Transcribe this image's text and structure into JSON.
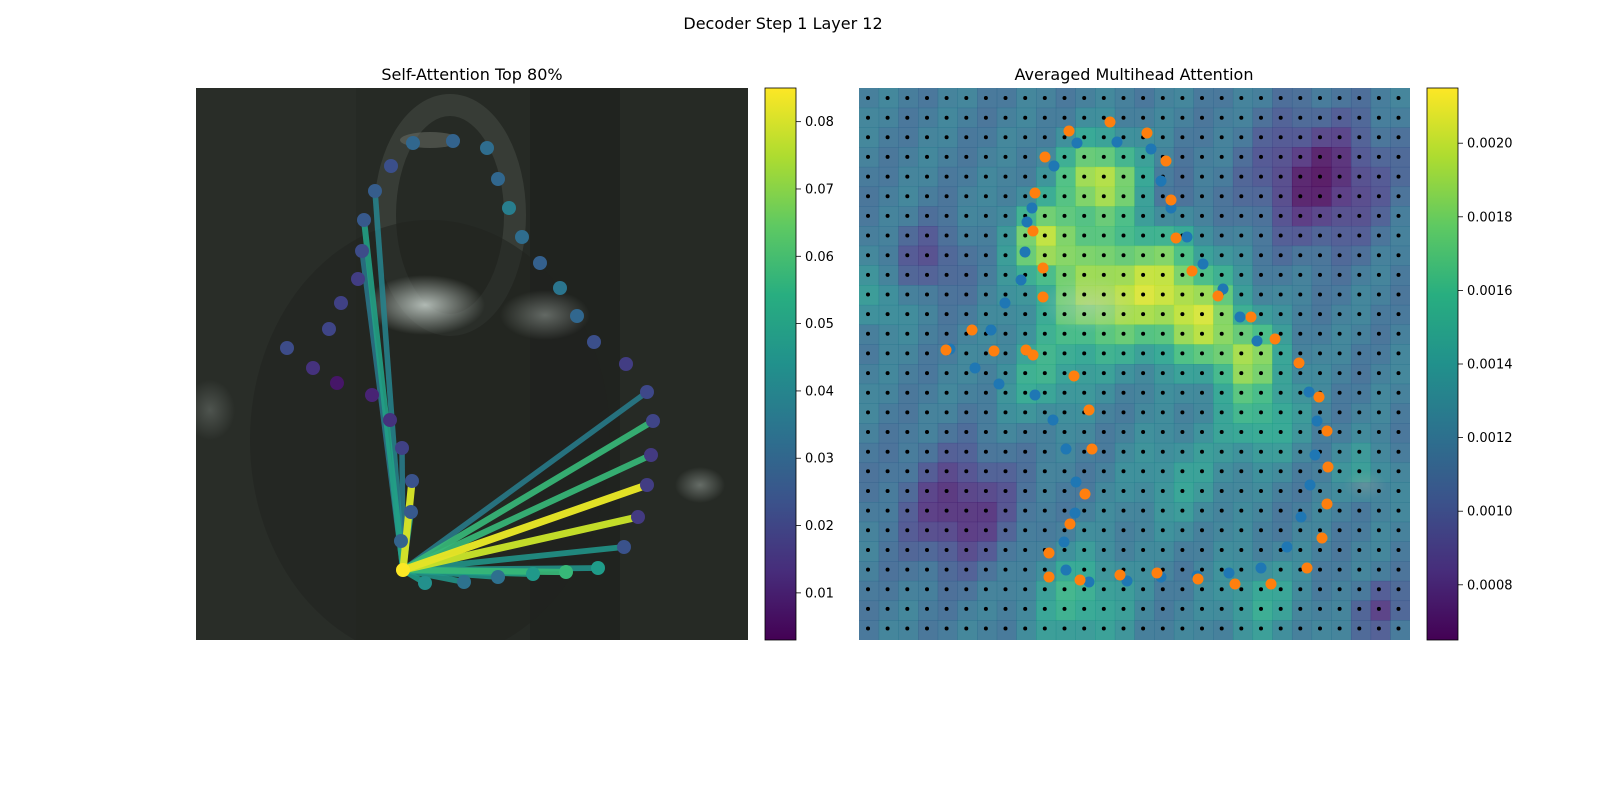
{
  "figure": {
    "title": "Decoder Step 1 Layer 12"
  },
  "chart_data": [
    {
      "type": "scatter",
      "title": "Self-Attention Top 80%",
      "description_of_background": "blurred dark photograph",
      "points": [
        {
          "x": 287,
          "y": 348,
          "w": 0.022
        },
        {
          "x": 313,
          "y": 368,
          "w": 0.015
        },
        {
          "x": 337,
          "y": 383,
          "w": 0.008
        },
        {
          "x": 372,
          "y": 395,
          "w": 0.011
        },
        {
          "x": 329,
          "y": 329,
          "w": 0.02
        },
        {
          "x": 341,
          "y": 303,
          "w": 0.019
        },
        {
          "x": 358,
          "y": 279,
          "w": 0.018
        },
        {
          "x": 362,
          "y": 251,
          "w": 0.022
        },
        {
          "x": 364,
          "y": 220,
          "w": 0.026
        },
        {
          "x": 375,
          "y": 191,
          "w": 0.027
        },
        {
          "x": 391,
          "y": 166,
          "w": 0.023
        },
        {
          "x": 413,
          "y": 143,
          "w": 0.03
        },
        {
          "x": 453,
          "y": 141,
          "w": 0.029
        },
        {
          "x": 487,
          "y": 148,
          "w": 0.032
        },
        {
          "x": 498,
          "y": 179,
          "w": 0.03
        },
        {
          "x": 509,
          "y": 208,
          "w": 0.038
        },
        {
          "x": 522,
          "y": 237,
          "w": 0.032
        },
        {
          "x": 540,
          "y": 263,
          "w": 0.028
        },
        {
          "x": 560,
          "y": 288,
          "w": 0.035
        },
        {
          "x": 577,
          "y": 316,
          "w": 0.03
        },
        {
          "x": 594,
          "y": 342,
          "w": 0.023
        },
        {
          "x": 626,
          "y": 364,
          "w": 0.018
        },
        {
          "x": 647,
          "y": 392,
          "w": 0.021
        },
        {
          "x": 653,
          "y": 421,
          "w": 0.02
        },
        {
          "x": 651,
          "y": 455,
          "w": 0.017
        },
        {
          "x": 647,
          "y": 485,
          "w": 0.018
        },
        {
          "x": 638,
          "y": 517,
          "w": 0.017
        },
        {
          "x": 624,
          "y": 547,
          "w": 0.024
        },
        {
          "x": 598,
          "y": 568,
          "w": 0.048
        },
        {
          "x": 566,
          "y": 572,
          "w": 0.058
        },
        {
          "x": 533,
          "y": 574,
          "w": 0.047
        },
        {
          "x": 498,
          "y": 577,
          "w": 0.033
        },
        {
          "x": 464,
          "y": 582,
          "w": 0.034
        },
        {
          "x": 425,
          "y": 583,
          "w": 0.044
        },
        {
          "x": 403,
          "y": 570,
          "w": 0.085
        },
        {
          "x": 401,
          "y": 541,
          "w": 0.029
        },
        {
          "x": 411,
          "y": 512,
          "w": 0.026
        },
        {
          "x": 412,
          "y": 481,
          "w": 0.024
        },
        {
          "x": 402,
          "y": 448,
          "w": 0.019
        },
        {
          "x": 390,
          "y": 420,
          "w": 0.015
        }
      ],
      "edges": [
        {
          "from": 34,
          "to": 37,
          "w": 0.08
        },
        {
          "from": 34,
          "to": 36,
          "w": 0.048
        },
        {
          "from": 34,
          "to": 35,
          "w": 0.042
        },
        {
          "from": 34,
          "to": 38,
          "w": 0.038
        },
        {
          "from": 34,
          "to": 9,
          "w": 0.04
        },
        {
          "from": 34,
          "to": 8,
          "w": 0.05
        },
        {
          "from": 34,
          "to": 7,
          "w": 0.036
        },
        {
          "from": 34,
          "to": 22,
          "w": 0.038
        },
        {
          "from": 34,
          "to": 23,
          "w": 0.058
        },
        {
          "from": 34,
          "to": 24,
          "w": 0.058
        },
        {
          "from": 34,
          "to": 25,
          "w": 0.082
        },
        {
          "from": 34,
          "to": 26,
          "w": 0.078
        },
        {
          "from": 34,
          "to": 27,
          "w": 0.046
        },
        {
          "from": 34,
          "to": 28,
          "w": 0.045
        },
        {
          "from": 34,
          "to": 29,
          "w": 0.058
        },
        {
          "from": 34,
          "to": 30,
          "w": 0.05
        },
        {
          "from": 34,
          "to": 31,
          "w": 0.046
        },
        {
          "from": 34,
          "to": 32,
          "w": 0.046
        },
        {
          "from": 34,
          "to": 33,
          "w": 0.048
        }
      ],
      "colorbar": {
        "min": 0.003,
        "max": 0.085,
        "ticks": [
          "0.01",
          "0.02",
          "0.03",
          "0.04",
          "0.05",
          "0.06",
          "0.07",
          "0.08"
        ],
        "colormap": "viridis"
      }
    },
    {
      "type": "heatmap",
      "title": "Averaged Multihead Attention",
      "grid_rows": 28,
      "grid_cols": 28,
      "colorbar": {
        "min": 0.00065,
        "max": 0.00215,
        "ticks": [
          "0.0008",
          "0.0010",
          "0.0012",
          "0.0014",
          "0.0016",
          "0.0018",
          "0.0020"
        ],
        "colormap": "viridis"
      },
      "series": [
        {
          "name": "blue",
          "color": "#1f77b4",
          "points": [
            [
              950,
              349
            ],
            [
              975,
              368
            ],
            [
              999,
              384
            ],
            [
              991,
              330
            ],
            [
              1005,
              303
            ],
            [
              1021,
              280
            ],
            [
              1025,
              252
            ],
            [
              1027,
              222
            ],
            [
              1032,
              208
            ],
            [
              1054,
              166
            ],
            [
              1077,
              143
            ],
            [
              1117,
              142
            ],
            [
              1151,
              149
            ],
            [
              1161,
              181
            ],
            [
              1171,
              208
            ],
            [
              1187,
              237
            ],
            [
              1203,
              264
            ],
            [
              1223,
              289
            ],
            [
              1240,
              317
            ],
            [
              1257,
              341
            ],
            [
              1299,
              364
            ],
            [
              1309,
              392
            ],
            [
              1317,
              421
            ],
            [
              1315,
              455
            ],
            [
              1310,
              485
            ],
            [
              1301,
              517
            ],
            [
              1287,
              547
            ],
            [
              1261,
              568
            ],
            [
              1229,
              573
            ],
            [
              1197,
              576
            ],
            [
              1161,
              577
            ],
            [
              1127,
              581
            ],
            [
              1089,
              582
            ],
            [
              1066,
              570
            ],
            [
              1064,
              542
            ],
            [
              1075,
              513
            ],
            [
              1076,
              482
            ],
            [
              1066,
              449
            ],
            [
              1053,
              420
            ],
            [
              1035,
              395
            ]
          ]
        },
        {
          "name": "orange",
          "color": "#ff7f0e",
          "points": [
            [
              946,
              350
            ],
            [
              972,
              330
            ],
            [
              994,
              351
            ],
            [
              1033,
              355
            ],
            [
              1043,
              297
            ],
            [
              1043,
              268
            ],
            [
              1033,
              231
            ],
            [
              1035,
              193
            ],
            [
              1045,
              157
            ],
            [
              1069,
              131
            ],
            [
              1110,
              122
            ],
            [
              1147,
              133
            ],
            [
              1166,
              161
            ],
            [
              1171,
              200
            ],
            [
              1176,
              238
            ],
            [
              1192,
              271
            ],
            [
              1218,
              296
            ],
            [
              1251,
              317
            ],
            [
              1275,
              339
            ],
            [
              1299,
              363
            ],
            [
              1319,
              397
            ],
            [
              1327,
              431
            ],
            [
              1328,
              467
            ],
            [
              1327,
              504
            ],
            [
              1322,
              538
            ],
            [
              1307,
              568
            ],
            [
              1271,
              584
            ],
            [
              1235,
              584
            ],
            [
              1198,
              579
            ],
            [
              1157,
              573
            ],
            [
              1120,
              575
            ],
            [
              1080,
              580
            ],
            [
              1049,
              577
            ],
            [
              1049,
              553
            ],
            [
              1070,
              524
            ],
            [
              1085,
              494
            ],
            [
              1092,
              449
            ],
            [
              1089,
              410
            ],
            [
              1074,
              376
            ],
            [
              1026,
              350
            ]
          ]
        }
      ]
    }
  ]
}
